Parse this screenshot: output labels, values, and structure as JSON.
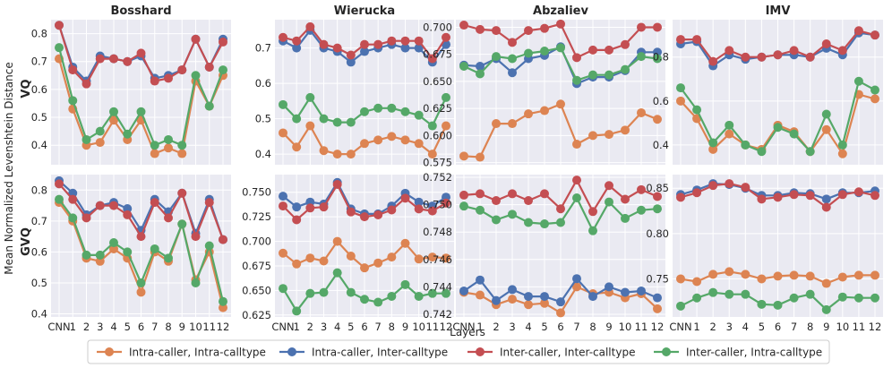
{
  "chart_data": {
    "type": "line",
    "ylabel": "Mean Normalized Levenshtein Distance",
    "xlabel": "Layers",
    "categories": [
      "CNN",
      "1",
      "2",
      "3",
      "4",
      "5",
      "6",
      "7",
      "8",
      "9",
      "10",
      "11",
      "12"
    ],
    "tick_labels": [
      "CNN",
      "1",
      "2",
      "3",
      "4",
      "5",
      "6",
      "7",
      "8",
      "9",
      "10",
      "11",
      "12"
    ],
    "series_names": [
      "Intra-caller, Intra-calltype",
      "Intra-caller, Inter-calltype",
      "Inter-caller, Inter-calltype",
      "Inter-caller, Intra-calltype"
    ],
    "colors": {
      "Intra-caller, Intra-calltype": "#dd8452",
      "Intra-caller, Inter-calltype": "#4c72b0",
      "Inter-caller, Inter-calltype": "#c44e52",
      "Inter-caller, Intra-calltype": "#55a868"
    },
    "rows": [
      "VQ",
      "GVQ"
    ],
    "columns": [
      "Bosshard",
      "Wierucka",
      "Abzaliev",
      "IMV"
    ],
    "panels": [
      {
        "row": "VQ",
        "title": "Bosshard",
        "ylim": [
          0.33,
          0.85
        ],
        "yticks": [
          0.4,
          0.5,
          0.6,
          0.7,
          0.8
        ],
        "ytick_labels": [
          "0.4",
          "0.5",
          "0.6",
          "0.7",
          "0.8"
        ],
        "series": [
          {
            "name": "Intra-caller, Intra-calltype",
            "values": [
              0.71,
              0.53,
              0.4,
              0.41,
              0.49,
              0.42,
              0.49,
              0.37,
              0.39,
              0.37,
              0.63,
              0.54,
              0.65
            ]
          },
          {
            "name": "Intra-caller, Inter-calltype",
            "values": [
              0.83,
              0.68,
              0.63,
              0.72,
              0.71,
              0.7,
              0.72,
              0.64,
              0.65,
              0.67,
              0.78,
              0.68,
              0.78
            ]
          },
          {
            "name": "Inter-caller, Inter-calltype",
            "values": [
              0.83,
              0.67,
              0.62,
              0.71,
              0.71,
              0.7,
              0.73,
              0.63,
              0.64,
              0.67,
              0.78,
              0.68,
              0.77
            ]
          },
          {
            "name": "Inter-caller, Intra-calltype",
            "values": [
              0.75,
              0.56,
              0.42,
              0.45,
              0.52,
              0.44,
              0.52,
              0.4,
              0.42,
              0.4,
              0.65,
              0.54,
              0.67
            ]
          }
        ]
      },
      {
        "row": "VQ",
        "title": "Wierucka",
        "ylim": [
          0.37,
          0.78
        ],
        "yticks": [
          0.4,
          0.5,
          0.6,
          0.7
        ],
        "ytick_labels": [
          "0.4",
          "0.5",
          "0.6",
          "0.7"
        ],
        "series": [
          {
            "name": "Intra-caller, Intra-calltype",
            "values": [
              0.46,
              0.42,
              0.48,
              0.41,
              0.4,
              0.4,
              0.43,
              0.44,
              0.45,
              0.44,
              0.43,
              0.4,
              0.48
            ]
          },
          {
            "name": "Intra-caller, Inter-calltype",
            "values": [
              0.72,
              0.7,
              0.75,
              0.7,
              0.69,
              0.66,
              0.69,
              0.7,
              0.71,
              0.7,
              0.7,
              0.66,
              0.71
            ]
          },
          {
            "name": "Inter-caller, Inter-calltype",
            "values": [
              0.73,
              0.72,
              0.76,
              0.71,
              0.7,
              0.68,
              0.71,
              0.71,
              0.72,
              0.72,
              0.72,
              0.67,
              0.73
            ]
          },
          {
            "name": "Inter-caller, Intra-calltype",
            "values": [
              0.54,
              0.5,
              0.56,
              0.5,
              0.49,
              0.49,
              0.52,
              0.53,
              0.53,
              0.52,
              0.51,
              0.48,
              0.56
            ]
          }
        ]
      },
      {
        "row": "VQ",
        "title": "Abzaliev",
        "ylim": [
          0.573,
          0.707
        ],
        "yticks": [
          0.575,
          0.6,
          0.625,
          0.65,
          0.675,
          0.7
        ],
        "ytick_labels": [
          "0.575",
          "0.600",
          "0.625",
          "0.650",
          "0.675",
          "0.700"
        ],
        "series": [
          {
            "name": "Intra-caller, Intra-calltype",
            "values": [
              0.581,
              0.58,
              0.611,
              0.611,
              0.62,
              0.623,
              0.629,
              0.592,
              0.6,
              0.601,
              0.605,
              0.621,
              0.615
            ]
          },
          {
            "name": "Intra-caller, Inter-calltype",
            "values": [
              0.665,
              0.664,
              0.671,
              0.658,
              0.671,
              0.674,
              0.682,
              0.648,
              0.654,
              0.654,
              0.66,
              0.677,
              0.677
            ]
          },
          {
            "name": "Inter-caller, Inter-calltype",
            "values": [
              0.702,
              0.698,
              0.697,
              0.686,
              0.697,
              0.699,
              0.703,
              0.672,
              0.679,
              0.679,
              0.684,
              0.7,
              0.7
            ]
          },
          {
            "name": "Inter-caller, Intra-calltype",
            "values": [
              0.664,
              0.657,
              0.673,
              0.671,
              0.676,
              0.678,
              0.681,
              0.651,
              0.656,
              0.656,
              0.661,
              0.673,
              0.671
            ]
          }
        ]
      },
      {
        "row": "VQ",
        "title": "IMV",
        "ylim": [
          0.31,
          0.97
        ],
        "yticks": [
          0.4,
          0.6,
          0.8
        ],
        "ytick_labels": [
          "0.4",
          "0.6",
          "0.8"
        ],
        "series": [
          {
            "name": "Intra-caller, Intra-calltype",
            "values": [
              0.6,
              0.52,
              0.38,
              0.45,
              0.4,
              0.38,
              0.49,
              0.46,
              0.37,
              0.47,
              0.36,
              0.63,
              0.61
            ]
          },
          {
            "name": "Intra-caller, Inter-calltype",
            "values": [
              0.86,
              0.87,
              0.76,
              0.81,
              0.79,
              0.8,
              0.81,
              0.81,
              0.8,
              0.84,
              0.81,
              0.91,
              0.9
            ]
          },
          {
            "name": "Inter-caller, Inter-calltype",
            "values": [
              0.88,
              0.88,
              0.78,
              0.83,
              0.8,
              0.8,
              0.81,
              0.83,
              0.8,
              0.86,
              0.83,
              0.92,
              0.9
            ]
          },
          {
            "name": "Inter-caller, Intra-calltype",
            "values": [
              0.66,
              0.56,
              0.41,
              0.49,
              0.4,
              0.37,
              0.48,
              0.45,
              0.37,
              0.54,
              0.4,
              0.69,
              0.65
            ]
          }
        ]
      },
      {
        "row": "GVQ",
        "title": "Bosshard",
        "ylim": [
          0.39,
          0.85
        ],
        "yticks": [
          0.4,
          0.5,
          0.6,
          0.7,
          0.8
        ],
        "ytick_labels": [
          "0.4",
          "0.5",
          "0.6",
          "0.7",
          "0.8"
        ],
        "series": [
          {
            "name": "Intra-caller, Intra-calltype",
            "values": [
              0.76,
              0.7,
              0.58,
              0.57,
              0.61,
              0.58,
              0.47,
              0.6,
              0.57,
              0.69,
              0.51,
              0.6,
              0.42
            ]
          },
          {
            "name": "Intra-caller, Inter-calltype",
            "values": [
              0.83,
              0.79,
              0.72,
              0.75,
              0.76,
              0.74,
              0.67,
              0.77,
              0.73,
              0.79,
              0.66,
              0.77,
              0.64
            ]
          },
          {
            "name": "Inter-caller, Inter-calltype",
            "values": [
              0.82,
              0.77,
              0.71,
              0.75,
              0.75,
              0.72,
              0.65,
              0.76,
              0.71,
              0.79,
              0.65,
              0.76,
              0.64
            ]
          },
          {
            "name": "Inter-caller, Intra-calltype",
            "values": [
              0.77,
              0.71,
              0.59,
              0.59,
              0.63,
              0.6,
              0.5,
              0.61,
              0.58,
              0.69,
              0.5,
              0.62,
              0.44
            ]
          }
        ]
      },
      {
        "row": "GVQ",
        "title": "Wierucka",
        "ylim": [
          0.623,
          0.768
        ],
        "yticks": [
          0.625,
          0.65,
          0.675,
          0.7,
          0.725,
          0.75
        ],
        "ytick_labels": [
          "0.625",
          "0.650",
          "0.675",
          "0.700",
          "0.725",
          "0.750"
        ],
        "series": [
          {
            "name": "Intra-caller, Intra-calltype",
            "values": [
              0.688,
              0.677,
              0.683,
              0.68,
              0.7,
              0.685,
              0.673,
              0.678,
              0.684,
              0.698,
              0.682,
              0.684,
              0.683
            ]
          },
          {
            "name": "Intra-caller, Inter-calltype",
            "values": [
              0.746,
              0.735,
              0.74,
              0.738,
              0.76,
              0.733,
              0.728,
              0.728,
              0.736,
              0.749,
              0.74,
              0.736,
              0.745
            ]
          },
          {
            "name": "Inter-caller, Inter-calltype",
            "values": [
              0.736,
              0.722,
              0.734,
              0.735,
              0.758,
              0.73,
              0.725,
              0.727,
              0.732,
              0.744,
              0.733,
              0.731,
              0.739
            ]
          },
          {
            "name": "Inter-caller, Intra-calltype",
            "values": [
              0.652,
              0.629,
              0.647,
              0.648,
              0.668,
              0.648,
              0.641,
              0.638,
              0.644,
              0.656,
              0.644,
              0.647,
              0.647
            ]
          }
        ]
      },
      {
        "row": "GVQ",
        "title": "Abzaliev",
        "ylim": [
          0.7418,
          0.7522
        ],
        "yticks": [
          0.742,
          0.744,
          0.746,
          0.748,
          0.75,
          0.752
        ],
        "ytick_labels": [
          "0.742",
          "0.744",
          "0.746",
          "0.748",
          "0.750",
          "0.752"
        ],
        "series": [
          {
            "name": "Intra-caller, Intra-calltype",
            "values": [
              0.7436,
              0.7434,
              0.7427,
              0.7431,
              0.7427,
              0.7428,
              0.7421,
              0.744,
              0.7435,
              0.7436,
              0.7432,
              0.7435,
              0.7424
            ]
          },
          {
            "name": "Intra-caller, Inter-calltype",
            "values": [
              0.7437,
              0.7445,
              0.743,
              0.7438,
              0.7433,
              0.7433,
              0.7429,
              0.7446,
              0.7433,
              0.744,
              0.7436,
              0.7437,
              0.7432
            ]
          },
          {
            "name": "Inter-caller, Inter-calltype",
            "values": [
              0.7507,
              0.7508,
              0.7503,
              0.7508,
              0.7503,
              0.7508,
              0.7497,
              0.7518,
              0.7495,
              0.7514,
              0.7504,
              0.7511,
              0.7506
            ]
          },
          {
            "name": "Inter-caller, Intra-calltype",
            "values": [
              0.7499,
              0.7496,
              0.7489,
              0.7493,
              0.7487,
              0.7486,
              0.7487,
              0.7505,
              0.7481,
              0.7502,
              0.749,
              0.7496,
              0.7497
            ]
          }
        ]
      },
      {
        "row": "GVQ",
        "title": "IMV",
        "ylim": [
          0.708,
          0.865
        ],
        "yticks": [
          0.75,
          0.8,
          0.85
        ],
        "ytick_labels": [
          "0.75",
          "0.80",
          "0.85"
        ],
        "series": [
          {
            "name": "Intra-caller, Intra-calltype",
            "values": [
              0.75,
              0.747,
              0.755,
              0.758,
              0.755,
              0.75,
              0.753,
              0.754,
              0.753,
              0.745,
              0.752,
              0.754,
              0.754
            ]
          },
          {
            "name": "Intra-caller, Inter-calltype",
            "values": [
              0.843,
              0.848,
              0.855,
              0.854,
              0.85,
              0.842,
              0.842,
              0.845,
              0.844,
              0.838,
              0.845,
              0.845,
              0.847
            ]
          },
          {
            "name": "Inter-caller, Inter-calltype",
            "values": [
              0.84,
              0.845,
              0.853,
              0.855,
              0.851,
              0.838,
              0.84,
              0.843,
              0.842,
              0.829,
              0.843,
              0.846,
              0.842
            ]
          },
          {
            "name": "Inter-caller, Intra-calltype",
            "values": [
              0.72,
              0.729,
              0.735,
              0.733,
              0.733,
              0.722,
              0.721,
              0.729,
              0.733,
              0.716,
              0.73,
              0.729,
              0.729
            ]
          }
        ]
      }
    ]
  }
}
